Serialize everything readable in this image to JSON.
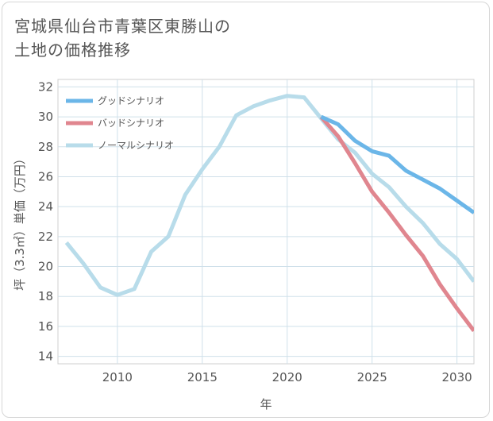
{
  "title_lines": [
    "宮城県仙台市青葉区東勝山の",
    "土地の価格推移"
  ],
  "chart_data": {
    "type": "line",
    "xlabel": "年",
    "ylabel": "坪（3.3㎡）単価（万円）",
    "xlim": [
      2006.5,
      2031
    ],
    "ylim": [
      13.5,
      32.5
    ],
    "x_ticks": [
      2010,
      2015,
      2020,
      2025,
      2030
    ],
    "y_ticks": [
      14,
      16,
      18,
      20,
      22,
      24,
      26,
      28,
      30,
      32
    ],
    "grid": true,
    "legend_position": "top-left",
    "series": [
      {
        "name": "グッドシナリオ",
        "color": "#6bb6e8",
        "x": [
          2022,
          2023,
          2024,
          2025,
          2026,
          2027,
          2028,
          2029,
          2030,
          2031
        ],
        "y": [
          30.0,
          29.5,
          28.4,
          27.7,
          27.4,
          26.4,
          25.8,
          25.2,
          24.4,
          23.6
        ]
      },
      {
        "name": "バッドシナリオ",
        "color": "#e0868f",
        "x": [
          2022,
          2023,
          2024,
          2025,
          2026,
          2027,
          2028,
          2029,
          2030,
          2031
        ],
        "y": [
          30.0,
          28.7,
          26.9,
          25.0,
          23.6,
          22.1,
          20.7,
          18.8,
          17.2,
          15.7
        ]
      },
      {
        "name": "ノーマルシナリオ",
        "color": "#b8dcea",
        "x": [
          2007,
          2008,
          2009,
          2010,
          2011,
          2012,
          2013,
          2014,
          2015,
          2016,
          2017,
          2018,
          2019,
          2020,
          2021,
          2022,
          2023,
          2024,
          2025,
          2026,
          2027,
          2028,
          2029,
          2030,
          2031
        ],
        "y": [
          21.6,
          20.2,
          18.6,
          18.1,
          18.5,
          21.0,
          22.0,
          24.8,
          26.5,
          28.0,
          30.1,
          30.7,
          31.1,
          31.4,
          31.3,
          29.9,
          28.5,
          27.6,
          26.2,
          25.3,
          24.0,
          22.9,
          21.5,
          20.5,
          19.0
        ]
      }
    ]
  }
}
